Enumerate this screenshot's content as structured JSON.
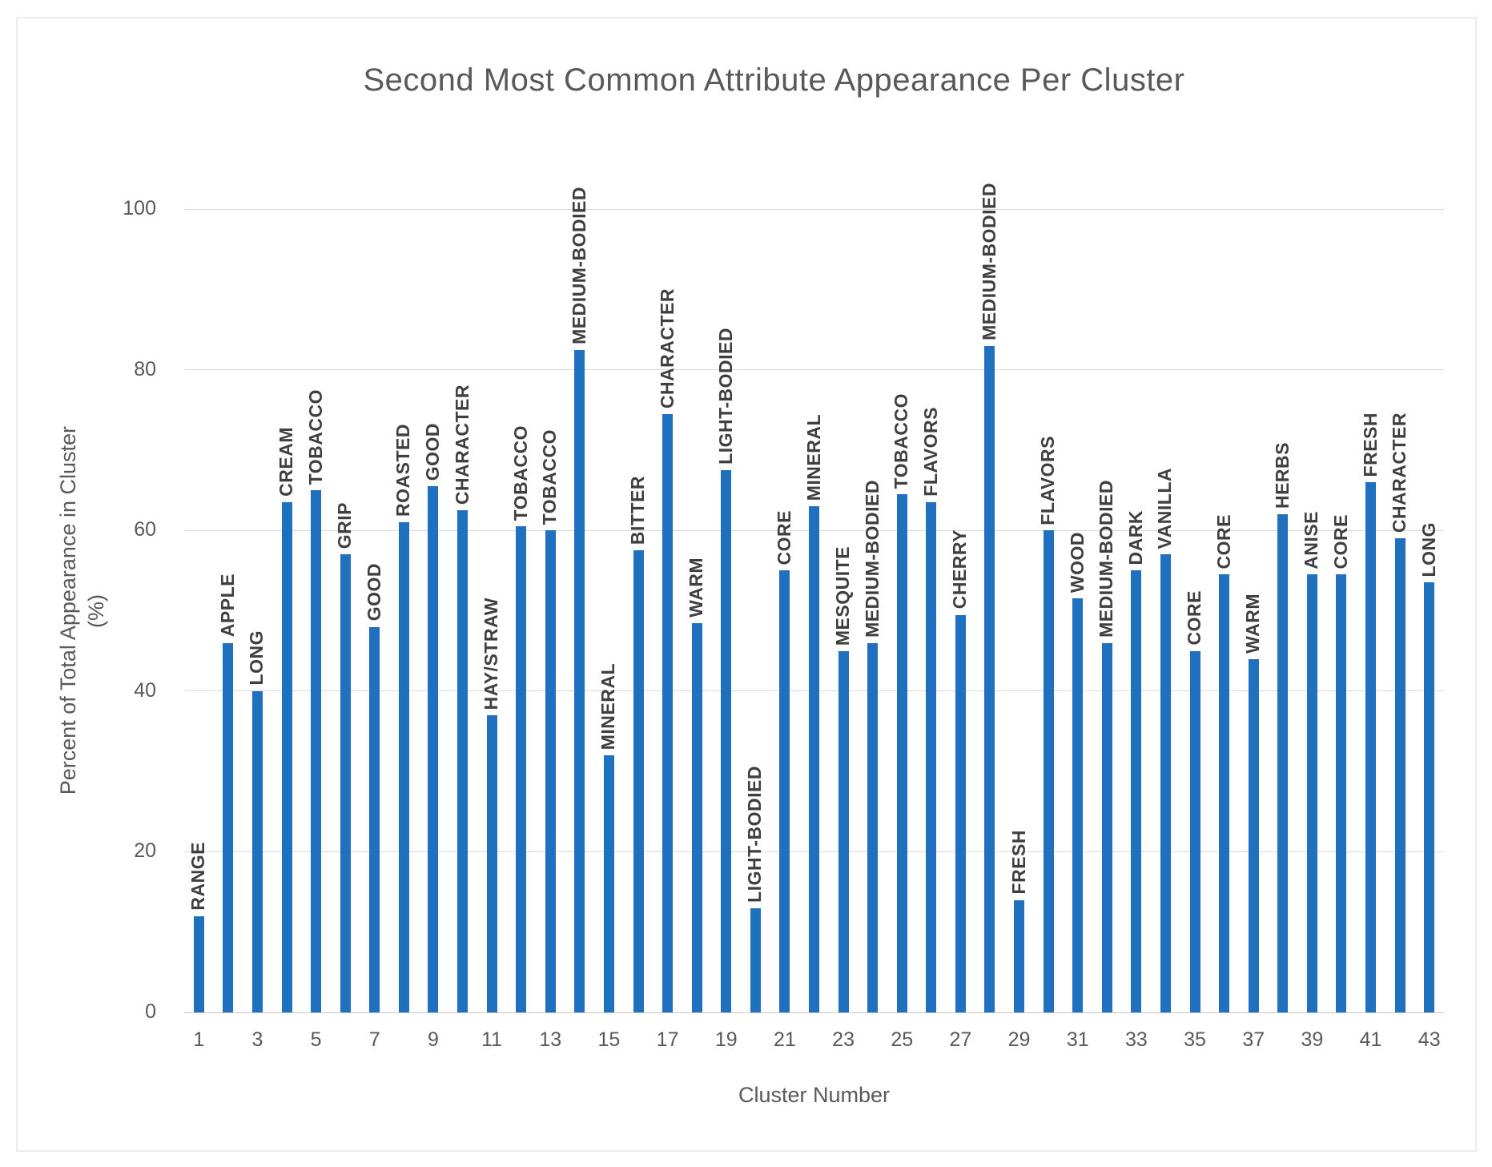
{
  "chart_data": {
    "type": "bar",
    "title": "Second Most Common Attribute Appearance Per Cluster",
    "xlabel": "Cluster Number",
    "ylabel": "Percent of Total Appearance in Cluster",
    "ylabel_unit_line": "(%)",
    "ylim": [
      0,
      100
    ],
    "yticks": [
      0,
      20,
      40,
      60,
      80,
      100
    ],
    "xticks": [
      1,
      3,
      5,
      7,
      9,
      11,
      13,
      15,
      17,
      19,
      21,
      23,
      25,
      27,
      29,
      31,
      33,
      35,
      37,
      39,
      41,
      43
    ],
    "grid": "horizontal",
    "legend_position": "none",
    "points": [
      {
        "cluster": 1,
        "attribute": "RANGE",
        "value": 12
      },
      {
        "cluster": 2,
        "attribute": "APPLE",
        "value": 46
      },
      {
        "cluster": 3,
        "attribute": "LONG",
        "value": 40
      },
      {
        "cluster": 4,
        "attribute": "CREAM",
        "value": 63.5
      },
      {
        "cluster": 5,
        "attribute": "TOBACCO",
        "value": 65
      },
      {
        "cluster": 6,
        "attribute": "GRIP",
        "value": 57
      },
      {
        "cluster": 7,
        "attribute": "GOOD",
        "value": 48
      },
      {
        "cluster": 8,
        "attribute": "ROASTED",
        "value": 61
      },
      {
        "cluster": 9,
        "attribute": "GOOD",
        "value": 65.5
      },
      {
        "cluster": 10,
        "attribute": "CHARACTER",
        "value": 62.5
      },
      {
        "cluster": 11,
        "attribute": "HAY/STRAW",
        "value": 37
      },
      {
        "cluster": 12,
        "attribute": "TOBACCO",
        "value": 60.5
      },
      {
        "cluster": 13,
        "attribute": "TOBACCO",
        "value": 60
      },
      {
        "cluster": 14,
        "attribute": "MEDIUM-BODIED",
        "value": 82.5
      },
      {
        "cluster": 15,
        "attribute": "MINERAL",
        "value": 32
      },
      {
        "cluster": 16,
        "attribute": "BITTER",
        "value": 57.5
      },
      {
        "cluster": 17,
        "attribute": "CHARACTER",
        "value": 74.5
      },
      {
        "cluster": 18,
        "attribute": "WARM",
        "value": 48.5
      },
      {
        "cluster": 19,
        "attribute": "LIGHT-BODIED",
        "value": 67.5
      },
      {
        "cluster": 20,
        "attribute": "LIGHT-BODIED",
        "value": 13
      },
      {
        "cluster": 21,
        "attribute": "CORE",
        "value": 55
      },
      {
        "cluster": 22,
        "attribute": "MINERAL",
        "value": 63
      },
      {
        "cluster": 23,
        "attribute": "MESQUITE",
        "value": 45
      },
      {
        "cluster": 24,
        "attribute": "MEDIUM-BODIED",
        "value": 46
      },
      {
        "cluster": 25,
        "attribute": "TOBACCO",
        "value": 64.5
      },
      {
        "cluster": 26,
        "attribute": "FLAVORS",
        "value": 63.5
      },
      {
        "cluster": 27,
        "attribute": "CHERRY",
        "value": 49.5
      },
      {
        "cluster": 28,
        "attribute": "MEDIUM-BODIED",
        "value": 83
      },
      {
        "cluster": 29,
        "attribute": "FRESH",
        "value": 14
      },
      {
        "cluster": 30,
        "attribute": "FLAVORS",
        "value": 60
      },
      {
        "cluster": 31,
        "attribute": "WOOD",
        "value": 51.5
      },
      {
        "cluster": 32,
        "attribute": "MEDIUM-BODIED",
        "value": 46
      },
      {
        "cluster": 33,
        "attribute": "DARK",
        "value": 55
      },
      {
        "cluster": 34,
        "attribute": "VANILLA",
        "value": 57
      },
      {
        "cluster": 35,
        "attribute": "CORE",
        "value": 45
      },
      {
        "cluster": 36,
        "attribute": "CORE",
        "value": 54.5
      },
      {
        "cluster": 37,
        "attribute": "WARM",
        "value": 44
      },
      {
        "cluster": 38,
        "attribute": "HERBS",
        "value": 62
      },
      {
        "cluster": 39,
        "attribute": "ANISE",
        "value": 54.5
      },
      {
        "cluster": 40,
        "attribute": "CORE",
        "value": 54.5
      },
      {
        "cluster": 41,
        "attribute": "FRESH",
        "value": 66
      },
      {
        "cluster": 42,
        "attribute": "CHARACTER",
        "value": 59
      },
      {
        "cluster": 43,
        "attribute": "LONG",
        "value": 53.5
      }
    ]
  },
  "colors": {
    "bar": "#2070C0",
    "title_text": "#595959",
    "axis_text": "#595959",
    "bar_label_text": "#3F3F3F",
    "gridline": "#D9D9D9",
    "axis_line": "#C6C6C6",
    "frame_border": "#ECECEC"
  }
}
